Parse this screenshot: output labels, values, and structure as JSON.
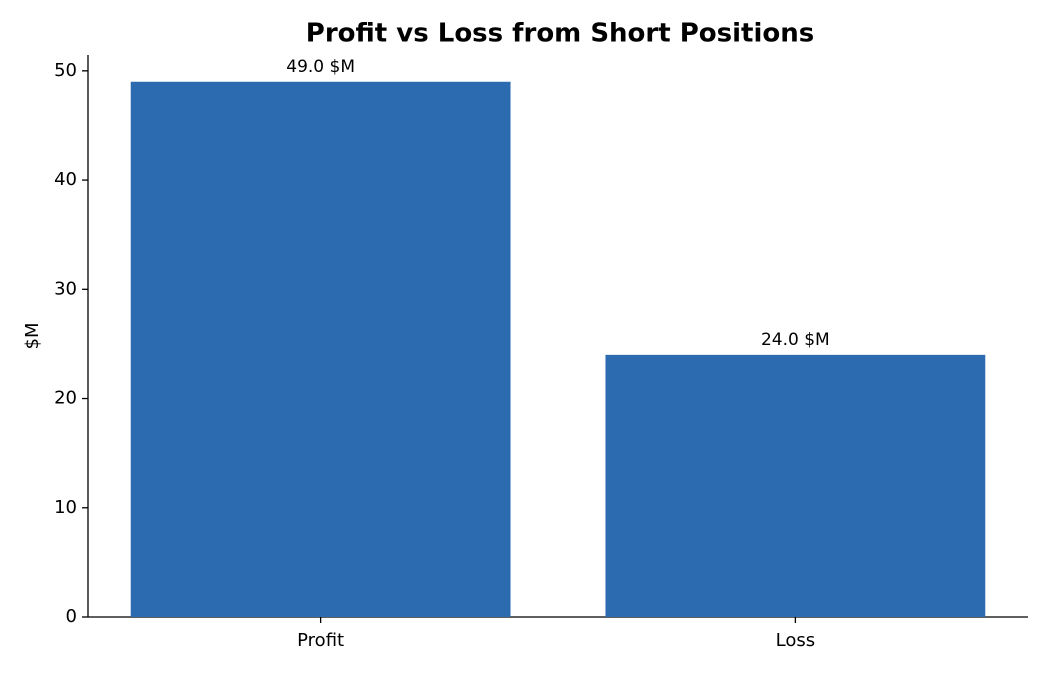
{
  "chart_data": {
    "type": "bar",
    "title": "Profit vs Loss from Short Positions",
    "y_label": "$M",
    "categories": [
      "Profit",
      "Loss"
    ],
    "values": [
      49.0,
      24.0
    ],
    "value_labels": [
      "49.0 $M",
      "24.0 $M"
    ],
    "color": "#2c6bb0",
    "ylim": [
      0,
      51.45
    ],
    "yticks": [
      0,
      10,
      20,
      30,
      40,
      50
    ],
    "grid": false
  }
}
